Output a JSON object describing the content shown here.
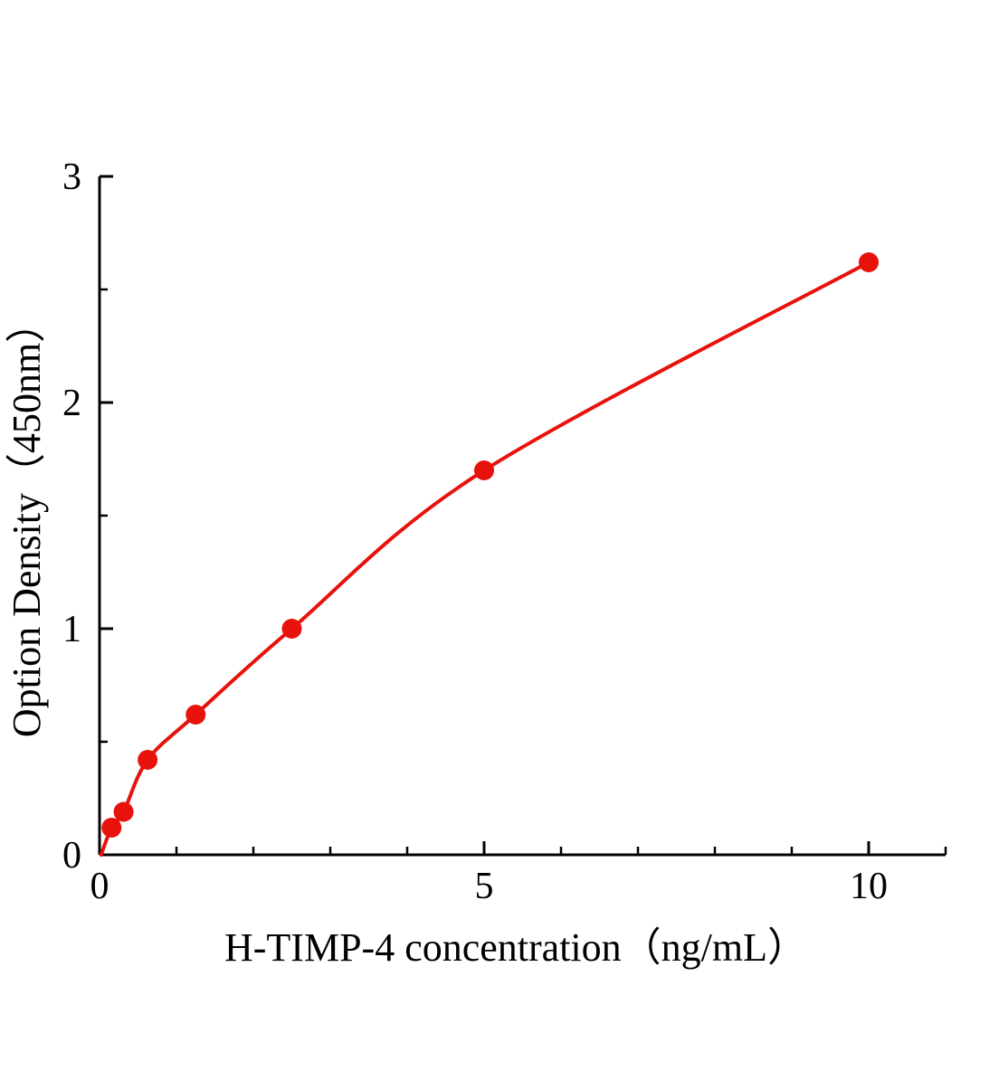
{
  "chart_data": {
    "type": "scatter",
    "title": "",
    "xlabel": "H-TIMP-4  concentration（ng/mL）",
    "ylabel": "Option Density（450nm）",
    "x": [
      0.156,
      0.3125,
      0.625,
      1.25,
      2.5,
      5,
      10
    ],
    "y": [
      0.12,
      0.19,
      0.42,
      0.62,
      1.0,
      1.7,
      2.62
    ],
    "curve_start": [
      0.02,
      0.0
    ],
    "xlim": [
      0,
      11
    ],
    "ylim": [
      0,
      3
    ],
    "x_major_ticks": [
      0,
      5,
      10
    ],
    "x_minor_step": 1,
    "y_major_ticks": [
      0,
      1,
      2,
      3
    ],
    "y_minor_step": 0.5,
    "x_tick_labels": [
      "0",
      "5",
      "10"
    ],
    "y_tick_labels": [
      "0",
      "1",
      "2",
      "3"
    ],
    "line_color": "#e8120c",
    "marker_color": "#e8120c",
    "axis_color": "#000000",
    "background_color": "#ffffff",
    "grid": "off",
    "legend": "none"
  }
}
